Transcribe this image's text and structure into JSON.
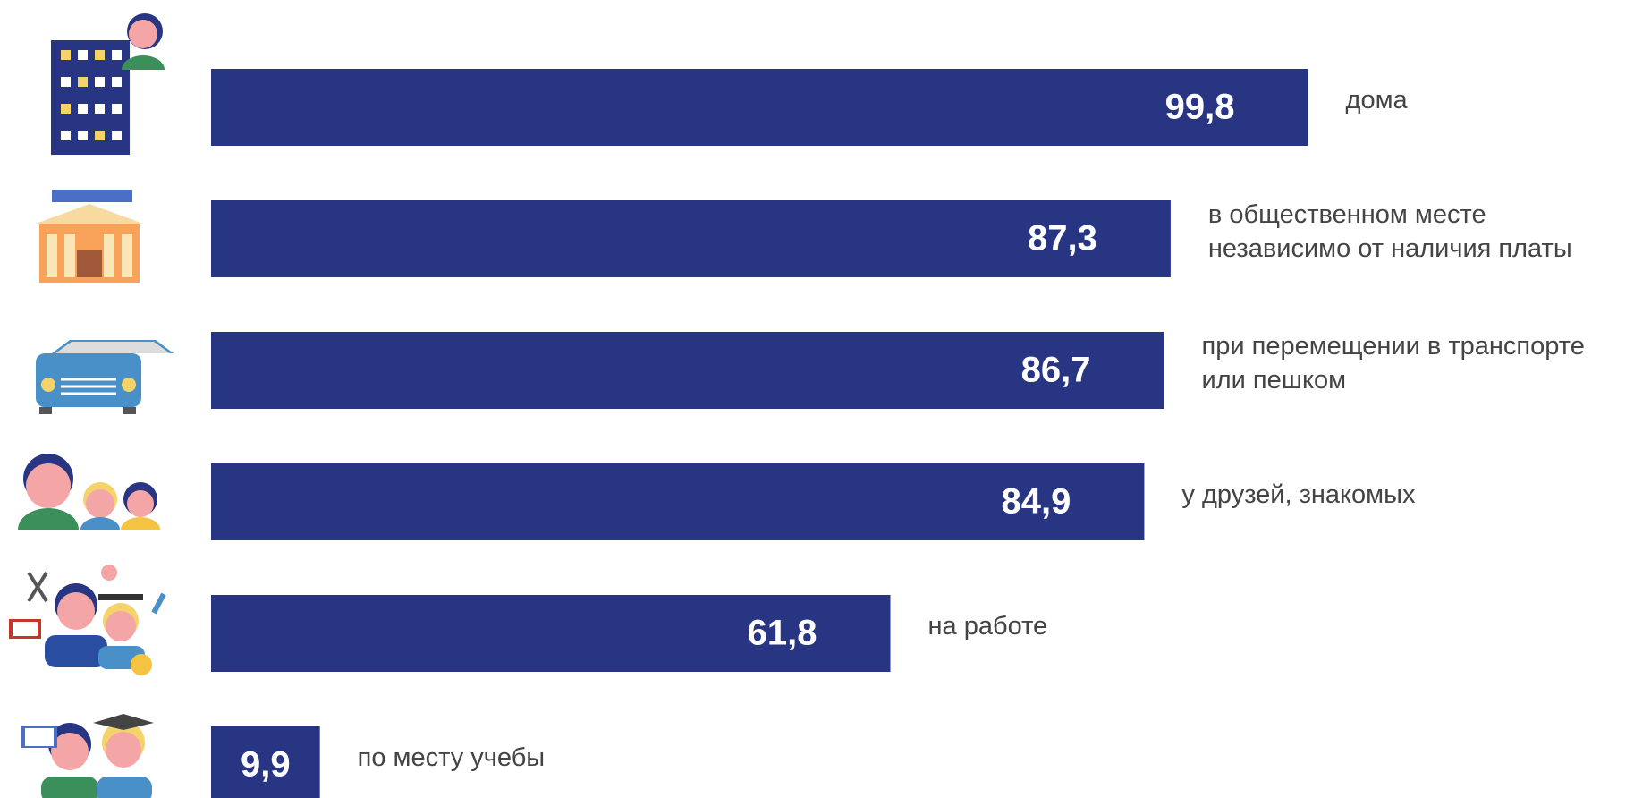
{
  "chart_data": {
    "type": "bar",
    "orientation": "horizontal",
    "categories": [
      "дома",
      "в общественном месте независимо от наличия платы",
      "при перемещении в транспорте или пешком",
      "у друзей, знакомых",
      "на работе",
      "по месту учебы"
    ],
    "values": [
      99.8,
      87.3,
      86.7,
      84.9,
      61.8,
      9.9
    ],
    "value_labels": [
      "99,8",
      "87,3",
      "86,7",
      "84,9",
      "61,8",
      "9,9"
    ],
    "color": "#283583"
  }
}
